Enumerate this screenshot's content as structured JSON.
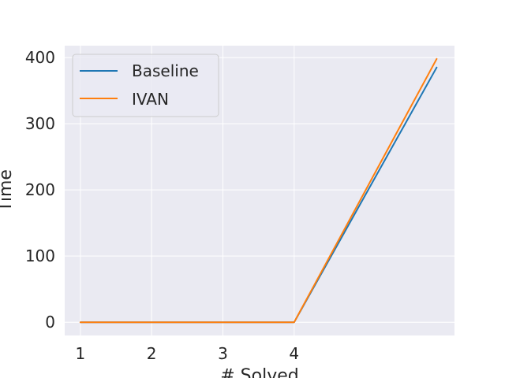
{
  "chart_data": {
    "type": "line",
    "xlabel": "# Solved",
    "ylabel": "Time",
    "x_ticks": [
      1,
      2,
      3,
      4
    ],
    "y_ticks": [
      0,
      100,
      200,
      300,
      400
    ],
    "xlim": [
      0.78,
      6.25
    ],
    "ylim": [
      -20,
      418
    ],
    "grid": true,
    "legend_position": "top-left",
    "series": [
      {
        "name": "Baseline",
        "color": "#1f77b4",
        "x": [
          1,
          2,
          3,
          4,
          6
        ],
        "y": [
          0,
          0,
          0,
          0,
          385
        ]
      },
      {
        "name": "IVAN",
        "color": "#ff7f0e",
        "x": [
          1,
          2,
          3,
          4,
          6
        ],
        "y": [
          0,
          0,
          0,
          0,
          398
        ]
      }
    ]
  }
}
